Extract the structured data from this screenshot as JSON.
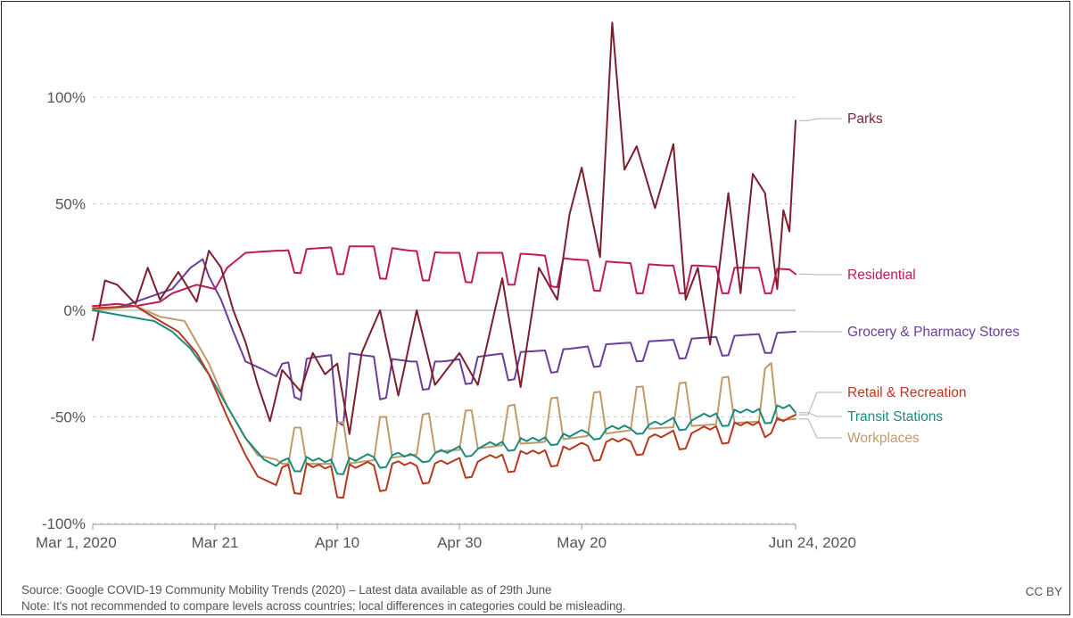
{
  "chart_data": {
    "type": "line",
    "x_start": "2020-03-01",
    "x_end": "2020-06-24",
    "x_ticks": [
      {
        "date": "2020-03-01",
        "label": "Mar 1, 2020"
      },
      {
        "date": "2020-03-21",
        "label": "Mar 21"
      },
      {
        "date": "2020-04-10",
        "label": "Apr 10"
      },
      {
        "date": "2020-04-30",
        "label": "Apr 30"
      },
      {
        "date": "2020-05-20",
        "label": "May 20"
      },
      {
        "date": "2020-06-24",
        "label": "Jun 24, 2020"
      }
    ],
    "y_ticks": [
      {
        "value": 100,
        "label": "100%"
      },
      {
        "value": 50,
        "label": "50%"
      },
      {
        "value": 0,
        "label": "0%"
      },
      {
        "value": -50,
        "label": "-50%"
      },
      {
        "value": -100,
        "label": "-100%"
      }
    ],
    "ylim": [
      -100,
      135
    ],
    "grid": true,
    "legend_placement": "right, inline labels at line ends",
    "series": [
      {
        "name": "Residential",
        "color": "#c2185b",
        "anchors": [
          [
            "2020-03-01",
            2
          ],
          [
            "2020-03-05",
            3
          ],
          [
            "2020-03-08",
            2
          ],
          [
            "2020-03-12",
            4
          ],
          [
            "2020-03-14",
            8
          ],
          [
            "2020-03-18",
            12
          ],
          [
            "2020-03-21",
            10
          ],
          [
            "2020-03-23",
            20
          ],
          [
            "2020-03-26",
            27
          ],
          [
            "2020-03-31",
            28
          ]
        ],
        "weekly_from": "2020-04-01",
        "weekly_to": "2020-06-24",
        "weekly_high": [
          28,
          29,
          30,
          30,
          28,
          27,
          27,
          27,
          26,
          24,
          23,
          22,
          21,
          21,
          20,
          20,
          19
        ],
        "weekly_low": [
          18,
          17,
          17,
          15,
          14,
          14,
          13,
          12,
          12,
          10,
          9,
          8,
          8,
          8,
          8,
          8,
          8
        ],
        "end_value": 17
      },
      {
        "name": "Grocery & Pharmacy Stores",
        "color": "#6a3d9a",
        "anchors": [
          [
            "2020-03-01",
            0
          ],
          [
            "2020-03-06",
            2
          ],
          [
            "2020-03-10",
            6
          ],
          [
            "2020-03-14",
            10
          ],
          [
            "2020-03-17",
            20
          ],
          [
            "2020-03-19",
            24
          ],
          [
            "2020-03-20",
            16
          ],
          [
            "2020-03-22",
            5
          ],
          [
            "2020-03-24",
            -10
          ],
          [
            "2020-03-26",
            -24
          ],
          [
            "2020-03-29",
            -28
          ],
          [
            "2020-03-31",
            -31
          ]
        ],
        "weekly_from": "2020-04-01",
        "weekly_to": "2020-06-24",
        "weekly_high": [
          -25,
          -22,
          -20,
          -22,
          -24,
          -24,
          -22,
          -20,
          -19,
          -18,
          -16,
          -15,
          -14,
          -13,
          -12,
          -11,
          -10
        ],
        "weekly_low": [
          -38,
          -45,
          -55,
          -42,
          -38,
          -36,
          -34,
          -33,
          -30,
          -28,
          -26,
          -24,
          -23,
          -22,
          -21,
          -20,
          -20
        ],
        "end_value": -10
      },
      {
        "name": "Parks",
        "color": "#7b1f2f",
        "anchors": [
          [
            "2020-03-01",
            -14
          ],
          [
            "2020-03-03",
            14
          ],
          [
            "2020-03-05",
            12
          ],
          [
            "2020-03-08",
            3
          ],
          [
            "2020-03-10",
            20
          ],
          [
            "2020-03-12",
            5
          ],
          [
            "2020-03-15",
            18
          ],
          [
            "2020-03-18",
            4
          ],
          [
            "2020-03-20",
            28
          ],
          [
            "2020-03-22",
            20
          ],
          [
            "2020-03-24",
            0
          ],
          [
            "2020-03-26",
            -15
          ],
          [
            "2020-03-28",
            -35
          ],
          [
            "2020-03-30",
            -52
          ],
          [
            "2020-04-01",
            -28
          ],
          [
            "2020-04-04",
            -38
          ],
          [
            "2020-04-06",
            -20
          ],
          [
            "2020-04-08",
            -30
          ],
          [
            "2020-04-10",
            -25
          ],
          [
            "2020-04-12",
            -58
          ],
          [
            "2020-04-14",
            -20
          ],
          [
            "2020-04-17",
            0
          ],
          [
            "2020-04-20",
            -40
          ],
          [
            "2020-04-23",
            0
          ],
          [
            "2020-04-26",
            -35
          ],
          [
            "2020-04-30",
            -20
          ],
          [
            "2020-05-03",
            -35
          ],
          [
            "2020-05-07",
            15
          ],
          [
            "2020-05-10",
            -36
          ],
          [
            "2020-05-13",
            20
          ],
          [
            "2020-05-16",
            5
          ],
          [
            "2020-05-18",
            45
          ],
          [
            "2020-05-20",
            67
          ],
          [
            "2020-05-23",
            25
          ],
          [
            "2020-05-25",
            135
          ],
          [
            "2020-05-27",
            66
          ],
          [
            "2020-05-29",
            77
          ],
          [
            "2020-06-01",
            48
          ],
          [
            "2020-06-04",
            78
          ],
          [
            "2020-06-06",
            5
          ],
          [
            "2020-06-08",
            20
          ],
          [
            "2020-06-10",
            -16
          ],
          [
            "2020-06-13",
            55
          ],
          [
            "2020-06-15",
            8
          ],
          [
            "2020-06-17",
            64
          ],
          [
            "2020-06-19",
            55
          ],
          [
            "2020-06-21",
            10
          ],
          [
            "2020-06-22",
            47
          ],
          [
            "2020-06-23",
            37
          ],
          [
            "2020-06-24",
            89
          ]
        ],
        "end_value": 89
      },
      {
        "name": "Workplaces",
        "color": "#c19a6b",
        "anchors": [
          [
            "2020-03-01",
            0
          ],
          [
            "2020-03-08",
            2
          ],
          [
            "2020-03-12",
            -3
          ],
          [
            "2020-03-16",
            -5
          ],
          [
            "2020-03-18",
            -15
          ],
          [
            "2020-03-20",
            -25
          ],
          [
            "2020-03-23",
            -45
          ],
          [
            "2020-03-26",
            -60
          ],
          [
            "2020-03-28",
            -68
          ],
          [
            "2020-03-31",
            -70
          ]
        ],
        "weekly_from": "2020-04-01",
        "weekly_to": "2020-06-24",
        "weekly_high": [
          -55,
          -55,
          -52,
          -50,
          -50,
          -47,
          -47,
          -45,
          -42,
          -40,
          -38,
          -36,
          -35,
          -33,
          -31,
          -28,
          -14
        ],
        "weekly_low": [
          -72,
          -72,
          -72,
          -70,
          -68,
          -66,
          -65,
          -63,
          -62,
          -60,
          -58,
          -56,
          -55,
          -54,
          -53,
          -52,
          -51
        ],
        "end_value": -51
      },
      {
        "name": "Transit Stations",
        "color": "#1a8a7a",
        "anchors": [
          [
            "2020-03-01",
            0
          ],
          [
            "2020-03-07",
            -3
          ],
          [
            "2020-03-11",
            -5
          ],
          [
            "2020-03-14",
            -10
          ],
          [
            "2020-03-17",
            -18
          ],
          [
            "2020-03-20",
            -30
          ],
          [
            "2020-03-23",
            -45
          ],
          [
            "2020-03-26",
            -60
          ],
          [
            "2020-03-29",
            -70
          ],
          [
            "2020-03-31",
            -73
          ]
        ],
        "weekly_from": "2020-04-01",
        "weekly_to": "2020-06-24",
        "weekly_high": [
          -70,
          -70,
          -70,
          -68,
          -68,
          -66,
          -64,
          -62,
          -60,
          -58,
          -56,
          -54,
          -52,
          -50,
          -48,
          -46,
          -44
        ],
        "weekly_low": [
          -75,
          -76,
          -77,
          -74,
          -72,
          -70,
          -68,
          -66,
          -64,
          -62,
          -60,
          -58,
          -57,
          -55,
          -54,
          -53,
          -52
        ],
        "end_value": -48
      },
      {
        "name": "Retail & Recreation",
        "color": "#b5391f",
        "anchors": [
          [
            "2020-03-01",
            1
          ],
          [
            "2020-03-08",
            2
          ],
          [
            "2020-03-12",
            -5
          ],
          [
            "2020-03-15",
            -10
          ],
          [
            "2020-03-18",
            -20
          ],
          [
            "2020-03-20",
            -30
          ],
          [
            "2020-03-23",
            -50
          ],
          [
            "2020-03-26",
            -68
          ],
          [
            "2020-03-28",
            -78
          ],
          [
            "2020-03-31",
            -82
          ]
        ],
        "weekly_from": "2020-04-01",
        "weekly_to": "2020-06-24",
        "weekly_high": [
          -73,
          -73,
          -73,
          -72,
          -72,
          -71,
          -70,
          -68,
          -66,
          -64,
          -62,
          -60,
          -58,
          -56,
          -54,
          -52,
          -50
        ],
        "weekly_low": [
          -85,
          -87,
          -88,
          -85,
          -82,
          -80,
          -78,
          -76,
          -74,
          -72,
          -70,
          -68,
          -66,
          -64,
          -62,
          -60,
          -50
        ],
        "end_value": -49
      }
    ],
    "labels_order": [
      "Parks",
      "Residential",
      "Grocery & Pharmacy Stores",
      "Retail & Recreation",
      "Transit Stations",
      "Workplaces"
    ]
  },
  "footer": {
    "source": "Source: Google COVID-19 Community Mobility Trends (2020) – Latest data available as of 29th June",
    "note": "Note: It's not recommended to compare levels across countries; local differences in categories could be misleading.",
    "license": "CC BY"
  }
}
